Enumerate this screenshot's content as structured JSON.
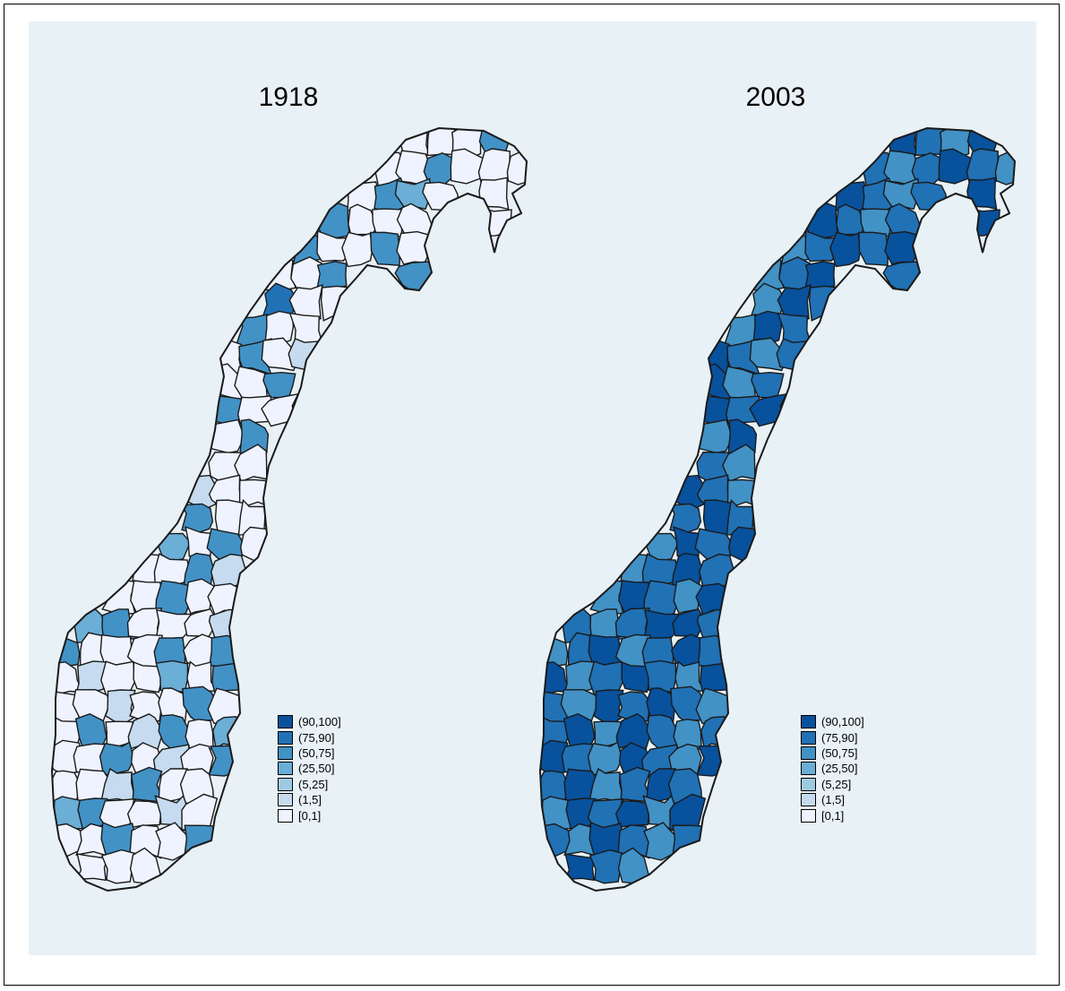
{
  "maps": [
    {
      "title": "1918",
      "region_classes": [
        0,
        0,
        0,
        4,
        0,
        0,
        4,
        0,
        0,
        0,
        0,
        4,
        3,
        0,
        0,
        4,
        0,
        0,
        0,
        0,
        4,
        0,
        0,
        4,
        0,
        0,
        0,
        4,
        4,
        5,
        0,
        0,
        4,
        0,
        0,
        0,
        4,
        0,
        1,
        0,
        0,
        4,
        4,
        0,
        0,
        0,
        4,
        0,
        0,
        1,
        0,
        0,
        4,
        0,
        0,
        3,
        0,
        4,
        0,
        0,
        0,
        4,
        1,
        0,
        0,
        4,
        0,
        0,
        3,
        4,
        0,
        0,
        0,
        1,
        4,
        0,
        0,
        0,
        4,
        0,
        4,
        0,
        1,
        0,
        0,
        3,
        0,
        4,
        0,
        0,
        1,
        0,
        0,
        4,
        0,
        0,
        4,
        0,
        1,
        4,
        0,
        3,
        0,
        0,
        4,
        0,
        1,
        0,
        4,
        0,
        0,
        1,
        4,
        0,
        0,
        3,
        4,
        0,
        0,
        1
      ]
    },
    {
      "title": "2003",
      "region_classes": [
        6,
        5,
        4,
        6,
        5,
        4,
        5,
        6,
        5,
        4,
        6,
        5,
        4,
        5,
        6,
        6,
        5,
        4,
        5,
        6,
        4,
        5,
        6,
        5,
        6,
        4,
        5,
        6,
        5,
        4,
        6,
        5,
        4,
        6,
        5,
        6,
        5,
        4,
        5,
        6,
        4,
        5,
        6,
        5,
        6,
        4,
        6,
        5,
        4,
        6,
        5,
        4,
        5,
        6,
        5,
        4,
        6,
        5,
        6,
        4,
        5,
        6,
        5,
        4,
        6,
        5,
        4,
        6,
        5,
        4,
        5,
        6,
        6,
        5,
        4,
        5,
        6,
        4,
        5,
        6,
        5,
        6,
        4,
        5,
        6,
        5,
        4,
        6,
        5,
        4,
        6,
        5,
        6,
        5,
        4,
        5,
        6,
        4,
        6,
        5,
        4,
        5,
        6,
        5,
        4,
        6,
        5,
        4,
        6,
        5,
        6,
        4,
        5,
        6,
        5,
        4,
        6,
        5,
        6,
        4
      ]
    }
  ],
  "legend": {
    "items": [
      {
        "label": "(90,100]",
        "color": "#08519c"
      },
      {
        "label": "(75,90]",
        "color": "#2171b5"
      },
      {
        "label": "(50,75]",
        "color": "#4292c6"
      },
      {
        "label": "(25,50]",
        "color": "#6baed6"
      },
      {
        "label": "(5,25]",
        "color": "#9ecae1"
      },
      {
        "label": "(1,5]",
        "color": "#c6dbef"
      },
      {
        "label": "[0,1]",
        "color": "#eff3ff"
      }
    ]
  },
  "colors": {
    "background": "#e8f1f5",
    "border": "#1a1a1a"
  }
}
